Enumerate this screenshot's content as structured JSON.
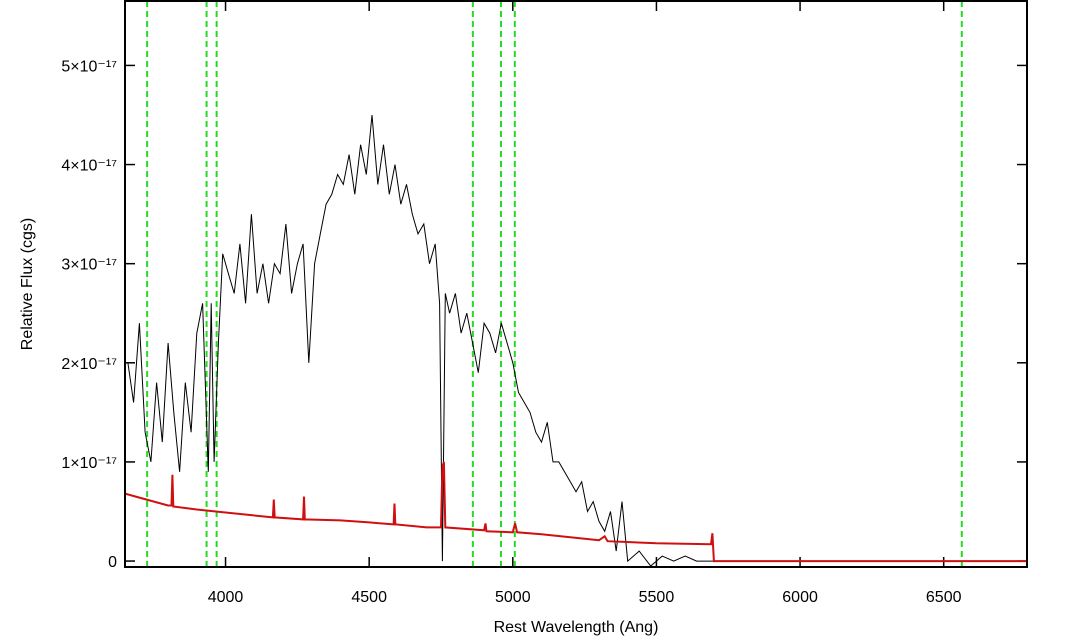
{
  "chart_data": {
    "type": "line",
    "xlabel": "Rest Wavelength (Ang)",
    "ylabel": "Relative Flux (cgs)",
    "xlim": [
      3650,
      6790
    ],
    "ylim": [
      -6e-19,
      5.65e-17
    ],
    "xticks": [
      4000,
      4500,
      5000,
      5500,
      6000,
      6500
    ],
    "yticks": [
      0,
      {
        "value": 1e-17,
        "label": "1×10⁻¹⁷"
      },
      {
        "value": 2e-17,
        "label": "2×10⁻¹⁷"
      },
      {
        "value": 3e-17,
        "label": "3×10⁻¹⁷"
      },
      {
        "value": 4e-17,
        "label": "4×10⁻¹⁷"
      },
      {
        "value": 5e-17,
        "label": "5×10⁻¹⁷"
      }
    ],
    "vlines": [
      3727,
      3934,
      3969,
      4861,
      4959,
      5007,
      6563
    ],
    "vline_color": "#22dd22",
    "series": [
      {
        "color": "#000000",
        "x": [
          3660,
          3680,
          3700,
          3720,
          3740,
          3760,
          3780,
          3800,
          3820,
          3840,
          3860,
          3880,
          3900,
          3920,
          3940,
          3950,
          3960,
          3975,
          3990,
          4010,
          4030,
          4050,
          4070,
          4090,
          4110,
          4130,
          4150,
          4170,
          4190,
          4210,
          4230,
          4250,
          4270,
          4290,
          4310,
          4330,
          4350,
          4370,
          4390,
          4410,
          4430,
          4450,
          4470,
          4490,
          4510,
          4530,
          4550,
          4570,
          4590,
          4610,
          4630,
          4650,
          4670,
          4690,
          4710,
          4730,
          4745,
          4755,
          4765,
          4780,
          4800,
          4820,
          4840,
          4860,
          4880,
          4900,
          4920,
          4940,
          4960,
          4980,
          5000,
          5020,
          5040,
          5060,
          5080,
          5100,
          5120,
          5140,
          5160,
          5180,
          5200,
          5220,
          5240,
          5260,
          5280,
          5300,
          5320,
          5340,
          5360,
          5380,
          5400,
          5440,
          5480,
          5520,
          5560,
          5600,
          5640,
          5680,
          5700
        ],
        "values": [
          2e-17,
          1.6e-17,
          2.4e-17,
          1.3e-17,
          1e-17,
          1.8e-17,
          1.2e-17,
          2.2e-17,
          1.5e-17,
          9e-18,
          1.8e-17,
          1.3e-17,
          2.3e-17,
          2.6e-17,
          9e-18,
          2.6e-17,
          1e-17,
          2.2e-17,
          3.1e-17,
          2.9e-17,
          2.7e-17,
          3.2e-17,
          2.6e-17,
          3.5e-17,
          2.7e-17,
          3e-17,
          2.6e-17,
          3e-17,
          2.9e-17,
          3.4e-17,
          2.7e-17,
          3e-17,
          3.2e-17,
          2e-17,
          3e-17,
          3.3e-17,
          3.6e-17,
          3.7e-17,
          3.9e-17,
          3.8e-17,
          4.1e-17,
          3.7e-17,
          4.2e-17,
          3.9e-17,
          4.5e-17,
          3.8e-17,
          4.2e-17,
          3.7e-17,
          4e-17,
          3.6e-17,
          3.8e-17,
          3.5e-17,
          3.3e-17,
          3.4e-17,
          3e-17,
          3.2e-17,
          2.6e-17,
          0,
          2.7e-17,
          2.5e-17,
          2.7e-17,
          2.3e-17,
          2.5e-17,
          2.2e-17,
          1.9e-17,
          2.4e-17,
          2.3e-17,
          2.1e-17,
          2.4e-17,
          2.2e-17,
          2e-17,
          1.7e-17,
          1.6e-17,
          1.5e-17,
          1.3e-17,
          1.2e-17,
          1.4e-17,
          1e-17,
          1e-17,
          9e-18,
          8e-18,
          7e-18,
          8e-18,
          5e-18,
          6e-18,
          4e-18,
          3e-18,
          5e-18,
          1e-18,
          6e-18,
          0,
          1e-18,
          -5e-19,
          5e-19,
          0,
          5e-19,
          0,
          0,
          0
        ]
      },
      {
        "color": "#d01010",
        "x": [
          3650,
          3700,
          3800,
          3812,
          3815,
          3818,
          3900,
          4000,
          4165,
          4168,
          4171,
          4270,
          4273,
          4276,
          4400,
          4500,
          4585,
          4588,
          4591,
          4700,
          4750,
          4755,
          4760,
          4765,
          4900,
          4905,
          4908,
          5000,
          5008,
          5015,
          5100,
          5200,
          5300,
          5320,
          5330,
          5500,
          5690,
          5695,
          5700,
          6790
        ],
        "values": [
          6.8e-18,
          6.4e-18,
          5.6e-18,
          5.6e-18,
          8.7e-18,
          5.5e-18,
          5.2e-18,
          4.9e-18,
          4.4e-18,
          6.2e-18,
          4.4e-18,
          4.2e-18,
          6.5e-18,
          4.2e-18,
          4.1e-18,
          3.9e-18,
          3.7e-18,
          5.8e-18,
          3.7e-18,
          3.4e-18,
          3.4e-18,
          9.5e-18,
          1e-17,
          3.4e-18,
          3.1e-18,
          3.8e-18,
          3e-18,
          2.9e-18,
          3.8e-18,
          2.9e-18,
          2.7e-18,
          2.4e-18,
          2.1e-18,
          2.5e-18,
          2e-18,
          1.8e-18,
          1.7e-18,
          2.8e-18,
          0,
          0
        ]
      }
    ]
  }
}
